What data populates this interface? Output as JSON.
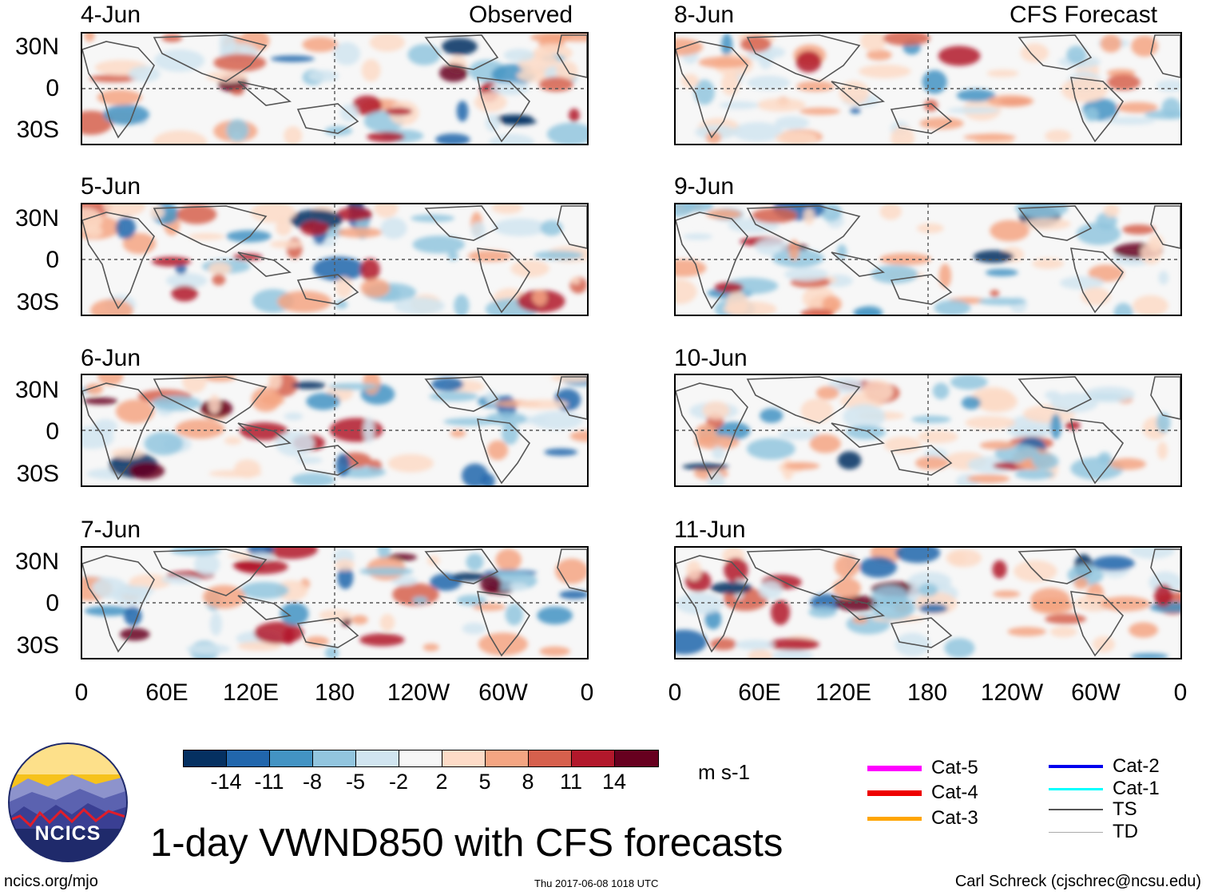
{
  "headers": {
    "left": "Observed",
    "right": "CFS Forecast"
  },
  "left_dates": [
    "4-Jun",
    "5-Jun",
    "6-Jun",
    "7-Jun"
  ],
  "right_dates": [
    "8-Jun",
    "9-Jun",
    "10-Jun",
    "11-Jun"
  ],
  "lat_labels": [
    "30N",
    "0",
    "30S"
  ],
  "lon_labels": [
    "0",
    "60E",
    "120E",
    "180",
    "120W",
    "60W",
    "0"
  ],
  "colorbar": {
    "colors": [
      "#053061",
      "#2166ac",
      "#4393c3",
      "#92c5de",
      "#d1e5f0",
      "#f7f7f7",
      "#fddbc7",
      "#f4a582",
      "#d6604d",
      "#b2182b",
      "#67001f"
    ],
    "ticks": [
      "-14",
      "-11",
      "-8",
      "-5",
      "-2",
      "2",
      "5",
      "8",
      "11",
      "14"
    ],
    "units": "m s-1"
  },
  "legend": [
    {
      "label": "Cat-5",
      "color": "#ff00ff"
    },
    {
      "label": "Cat-4",
      "color": "#ee0000"
    },
    {
      "label": "Cat-3",
      "color": "#ffa500"
    },
    {
      "label": "Cat-2",
      "color": "#0000ee"
    },
    {
      "label": "Cat-1",
      "color": "#00ffff"
    },
    {
      "label": "TS",
      "color": "#555555"
    },
    {
      "label": "TD",
      "color": "#aaaaaa"
    }
  ],
  "logo_text": "NCICS",
  "title": "1-day VWND850 with CFS forecasts",
  "footer": {
    "left": "ncics.org/mjo",
    "center": "Thu 2017-06-08 1018 UTC",
    "right": "Carl Schreck (cjschrec@ncsu.edu)"
  }
}
